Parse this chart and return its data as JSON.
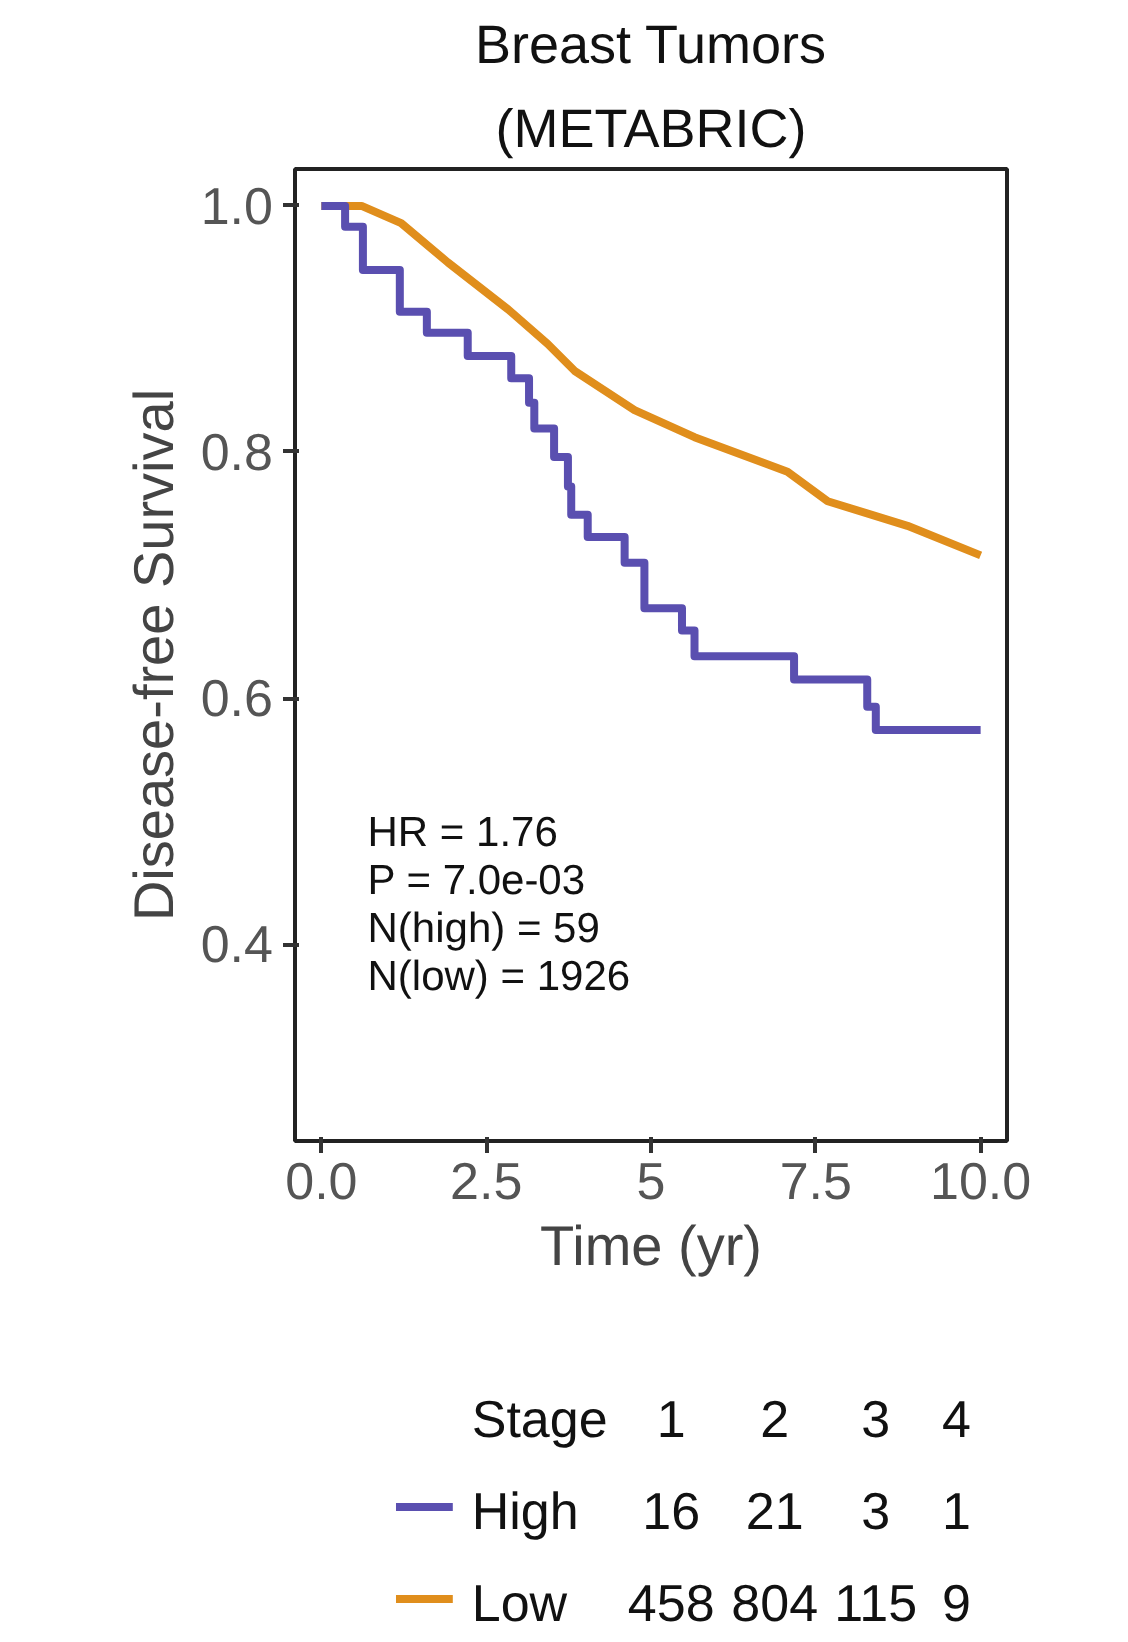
{
  "chart_data": {
    "type": "step",
    "title": "Breast Tumors",
    "subtitle": "(METABRIC)",
    "xlabel": "Time (yr)",
    "ylabel": "Disease-free Survival",
    "xlim": [
      -0.4,
      10.4
    ],
    "ylim": [
      0.24,
      1.03
    ],
    "xticks": [
      {
        "value": 0,
        "label": "0.0"
      },
      2.5,
      5,
      {
        "value": 7.5,
        "label": "7.5"
      },
      {
        "value": 10,
        "label": "10.0"
      }
    ],
    "yticks": [
      0.4,
      0.6,
      0.8,
      {
        "value": 1,
        "label": "1.0"
      }
    ],
    "grid": false,
    "legend": "bottom",
    "series": [
      {
        "name": "High",
        "color": "#5a4fb0",
        "x": [
          0,
          0.36,
          0.63,
          1.19,
          1.6,
          2.22,
          2.88,
          3.15,
          3.23,
          3.53,
          3.74,
          3.79,
          4.04,
          4.6,
          4.9,
          5.47,
          5.66,
          7.17,
          8.28,
          8.41,
          10.0
        ],
        "values": [
          1.0,
          0.983,
          0.948,
          0.914,
          0.897,
          0.878,
          0.86,
          0.84,
          0.819,
          0.796,
          0.772,
          0.749,
          0.731,
          0.71,
          0.673,
          0.655,
          0.634,
          0.615,
          0.593,
          0.574,
          0.574
        ]
      },
      {
        "name": "Low",
        "color": "#e08e1c",
        "type": "line",
        "x": [
          0,
          0.61,
          1.21,
          1.92,
          2.83,
          3.43,
          3.84,
          4.75,
          5.66,
          7.07,
          7.68,
          8.89,
          10.0
        ],
        "values": [
          1.0,
          1.0,
          0.986,
          0.954,
          0.916,
          0.888,
          0.866,
          0.834,
          0.812,
          0.784,
          0.76,
          0.74,
          0.716
        ]
      }
    ],
    "annotations": [
      "HR = 1.76",
      "P = 7.0e-03",
      "N(high) = 59",
      "N(low) = 1926",
      "Stage",
      "1",
      "2",
      "3",
      "4",
      "16",
      "21",
      "3",
      "1",
      "458",
      "804",
      "115",
      "9"
    ]
  }
}
